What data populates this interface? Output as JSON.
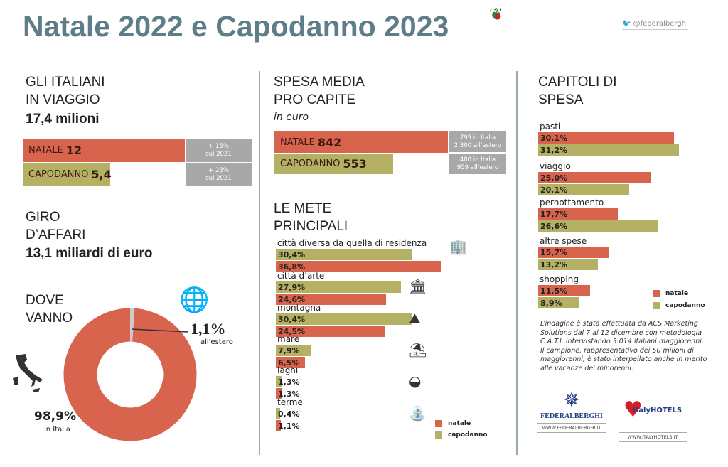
{
  "header": {
    "title": "Natale 2022 e Capodanno 2023",
    "twitter": "@federalberghi"
  },
  "colors": {
    "natale": "#d8644d",
    "capodanno": "#b4b064",
    "note_box": "#a8a8a8",
    "title": "#5f7d89"
  },
  "viaggio": {
    "heading1": "GLI ITALIANI",
    "heading2": "IN VIAGGIO",
    "total": "17,4 milioni",
    "natale_label": "NATALE",
    "natale_value": "12",
    "natale_note1": "+ 15%",
    "natale_note2": "sul 2021",
    "capodanno_label": "CAPODANNO",
    "capodanno_value": "5,4",
    "capodanno_note1": "+ 23%",
    "capodanno_note2": "sul 2021"
  },
  "affari": {
    "heading1": "GIRO",
    "heading2": "D’AFFARI",
    "total": "13,1 miliardi di euro"
  },
  "dove": {
    "heading1": "DOVE",
    "heading2": "VANNO",
    "estero_value": "1,1%",
    "estero_label": "all'estero",
    "italia_value": "98,9%",
    "italia_label": "in Italia"
  },
  "spesa": {
    "heading1": "SPESA MEDIA",
    "heading2": "PRO CAPITE",
    "unit": "in euro",
    "natale_label": "NATALE",
    "natale_value": "842",
    "natale_note1": "795 in Italia",
    "natale_note2": "2.300 all’estero",
    "capodanno_label": "CAPODANNO",
    "capodanno_value": "553",
    "capodanno_note1": "480 in Italia",
    "capodanno_note2": "959 all’estero"
  },
  "mete": {
    "heading1": "LE METE",
    "heading2": "PRINCIPALI"
  },
  "capitoli": {
    "heading1": "CAPITOLI DI",
    "heading2": "SPESA"
  },
  "legend": {
    "natale": "natale",
    "capodanno": "capodanno"
  },
  "note": {
    "text1": "L’indagine è stata effettuata da ACS Marketing Solutions dal 7 al 12 dicembre con metodologia C.A.T.I. intervistando 3.014 italiani maggiorenni.",
    "text2": "Il campione, rappresentativo dei 50 milioni di maggiorenni, è stato interpellato anche in merito alle vacanze dei minorenni."
  },
  "logos": {
    "federalberghi": "FEDERALBERGHI",
    "federalberghi_url": "WWW.FEDERALBERGHI.IT",
    "italyhotels": "ItalyHOTELS",
    "italyhotels_url": "WWW.ITALYHOTELS.IT"
  },
  "chart_data": [
    {
      "type": "bar",
      "title": "GLI ITALIANI IN VIAGGIO",
      "unit": "milioni",
      "categories": [
        "NATALE",
        "CAPODANNO"
      ],
      "values": [
        12,
        5.4
      ]
    },
    {
      "type": "bar",
      "title": "SPESA MEDIA PRO CAPITE",
      "unit": "in euro",
      "categories": [
        "NATALE",
        "CAPODANNO"
      ],
      "values": [
        842,
        553
      ]
    },
    {
      "type": "pie",
      "title": "DOVE VANNO",
      "categories": [
        "in Italia",
        "all'estero"
      ],
      "values": [
        98.9,
        1.1
      ]
    },
    {
      "type": "bar",
      "title": "LE METE PRINCIPALI",
      "orientation": "horizontal",
      "categories": [
        "città diversa da quella di residenza",
        "città d’arte",
        "montagna",
        "mare",
        "laghi",
        "terme"
      ],
      "icons": [
        "buildings-icon",
        "museum-icon",
        "mountain-icon",
        "umbrella-icon",
        "lake-icon",
        "fountain-icon"
      ],
      "series": [
        {
          "name": "capodanno",
          "values": [
            30.4,
            27.9,
            30.4,
            7.9,
            1.3,
            0.4
          ],
          "labels": [
            "30,4%",
            "27,9%",
            "30,4%",
            "7,9%",
            "1,3%",
            "0,4%"
          ]
        },
        {
          "name": "natale",
          "values": [
            36.8,
            24.6,
            24.5,
            6.5,
            1.3,
            1.1
          ],
          "labels": [
            "36,8%",
            "24,6%",
            "24,5%",
            "6,5%",
            "1,3%",
            "1,1%"
          ]
        }
      ],
      "legend": "bottom-right"
    },
    {
      "type": "bar",
      "title": "CAPITOLI DI SPESA",
      "orientation": "horizontal",
      "categories": [
        "pasti",
        "viaggio",
        "pernottamento",
        "altre spese",
        "shopping"
      ],
      "series": [
        {
          "name": "natale",
          "values": [
            30.1,
            25.0,
            17.7,
            15.7,
            11.5
          ],
          "labels": [
            "30,1%",
            "25,0%",
            "17,7%",
            "15,7%",
            "11,5%"
          ]
        },
        {
          "name": "capodanno",
          "values": [
            31.2,
            20.1,
            26.6,
            13.2,
            8.9
          ],
          "labels": [
            "31,2%",
            "20,1%",
            "26,6%",
            "13,2%",
            "8,9%"
          ]
        }
      ],
      "legend": "bottom-right"
    }
  ]
}
